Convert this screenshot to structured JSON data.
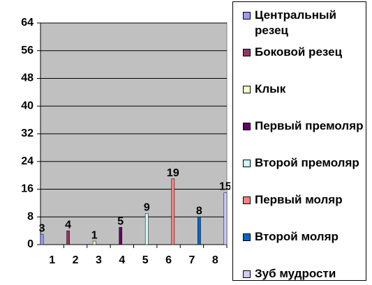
{
  "chart_data": {
    "type": "bar",
    "categories": [
      "1",
      "2",
      "3",
      "4",
      "5",
      "6",
      "7",
      "8"
    ],
    "series": [
      {
        "name": "Центральный резец",
        "color": "#9999FF",
        "values": [
          3,
          null,
          null,
          null,
          null,
          null,
          null,
          null
        ]
      },
      {
        "name": "Боковой резец",
        "color": "#993366",
        "values": [
          null,
          4,
          null,
          null,
          null,
          null,
          null,
          null
        ]
      },
      {
        "name": "Клык",
        "color": "#FFFFCC",
        "values": [
          null,
          null,
          1,
          null,
          null,
          null,
          null,
          null
        ]
      },
      {
        "name": "Первый премоляр",
        "color": "#660066",
        "values": [
          null,
          null,
          null,
          5,
          null,
          null,
          null,
          null
        ]
      },
      {
        "name": "Второй премоляр",
        "color": "#CCFFFF",
        "values": [
          null,
          null,
          null,
          null,
          9,
          null,
          null,
          null
        ]
      },
      {
        "name": "Первый моляр",
        "color": "#FF8080",
        "values": [
          null,
          null,
          null,
          null,
          null,
          19,
          null,
          null
        ]
      },
      {
        "name": "Второй моляр",
        "color": "#0066CC",
        "values": [
          null,
          null,
          null,
          null,
          null,
          null,
          8,
          null
        ]
      },
      {
        "name": "Зуб мудрости",
        "color": "#CCCCFF",
        "values": [
          null,
          null,
          null,
          null,
          null,
          null,
          null,
          15
        ]
      }
    ],
    "ylim": [
      0,
      64
    ],
    "yticks": [
      0,
      8,
      16,
      24,
      32,
      40,
      48,
      56,
      64
    ],
    "grid": true,
    "legend": "right"
  }
}
